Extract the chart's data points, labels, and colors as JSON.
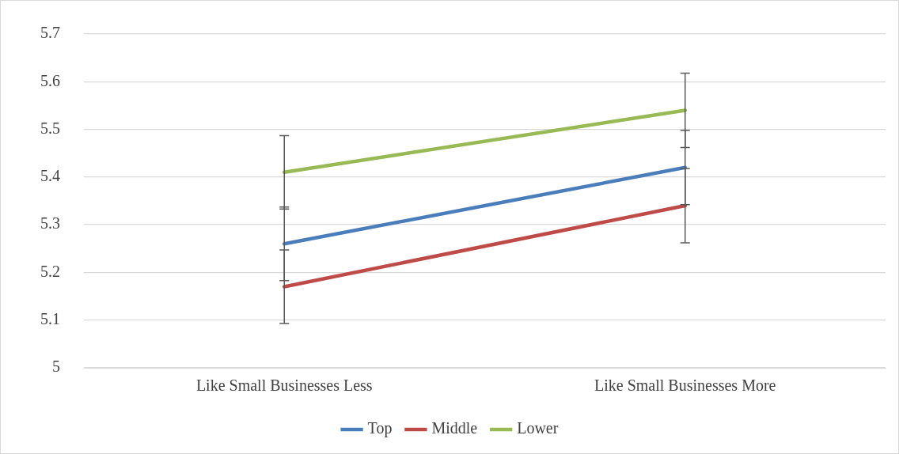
{
  "chart_data": {
    "type": "line",
    "categories": [
      "Like Small Businesses Less",
      "Like Small Businesses More"
    ],
    "series": [
      {
        "name": "Top",
        "color": "#4a7ebb",
        "values": [
          5.26,
          5.42
        ],
        "errors": [
          0.077,
          0.078
        ]
      },
      {
        "name": "Middle",
        "color": "#be4b48",
        "values": [
          5.17,
          5.34
        ],
        "errors": [
          0.077,
          0.078
        ]
      },
      {
        "name": "Lower",
        "color": "#98b954",
        "values": [
          5.41,
          5.54
        ],
        "errors": [
          0.077,
          0.078
        ]
      }
    ],
    "ylim": [
      5,
      5.7
    ],
    "yticks": [
      5,
      5.1,
      5.2,
      5.3,
      5.4,
      5.5,
      5.6,
      5.7
    ],
    "grid": "y",
    "legend": "bottom",
    "marker": "none",
    "line_style": "solid"
  }
}
